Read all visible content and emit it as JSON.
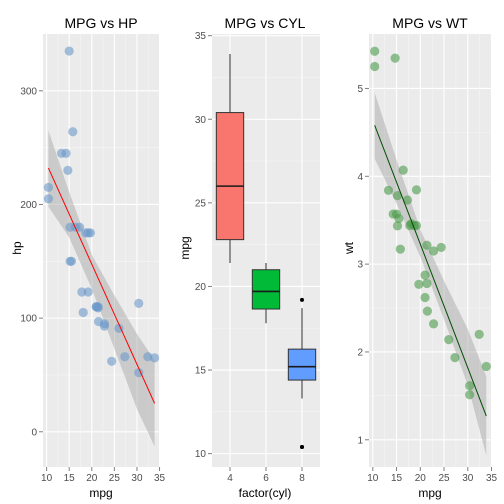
{
  "chart_data": [
    {
      "type": "scatter",
      "title": "MPG vs HP",
      "xlabel": "mpg",
      "ylabel": "hp",
      "xlim": [
        9.2,
        35.1
      ],
      "ylim": [
        -31,
        350
      ],
      "xticks": [
        10,
        15,
        20,
        25,
        30,
        35
      ],
      "yticks": [
        0,
        100,
        200,
        300
      ],
      "point_color": "#6d9ac9",
      "fit_color": "#ff0000",
      "band_color": "#999999",
      "grid": true,
      "points": [
        {
          "x": 21.0,
          "y": 110
        },
        {
          "x": 21.0,
          "y": 110
        },
        {
          "x": 22.8,
          "y": 93
        },
        {
          "x": 21.4,
          "y": 110
        },
        {
          "x": 18.7,
          "y": 175
        },
        {
          "x": 18.1,
          "y": 105
        },
        {
          "x": 14.3,
          "y": 245
        },
        {
          "x": 24.4,
          "y": 62
        },
        {
          "x": 22.8,
          "y": 95
        },
        {
          "x": 19.2,
          "y": 123
        },
        {
          "x": 17.8,
          "y": 123
        },
        {
          "x": 16.4,
          "y": 180
        },
        {
          "x": 17.3,
          "y": 180
        },
        {
          "x": 15.2,
          "y": 180
        },
        {
          "x": 10.4,
          "y": 205
        },
        {
          "x": 10.4,
          "y": 215
        },
        {
          "x": 14.7,
          "y": 230
        },
        {
          "x": 32.4,
          "y": 66
        },
        {
          "x": 30.4,
          "y": 52
        },
        {
          "x": 33.9,
          "y": 65
        },
        {
          "x": 21.5,
          "y": 97
        },
        {
          "x": 15.5,
          "y": 150
        },
        {
          "x": 15.2,
          "y": 150
        },
        {
          "x": 13.3,
          "y": 245
        },
        {
          "x": 19.2,
          "y": 175
        },
        {
          "x": 27.3,
          "y": 66
        },
        {
          "x": 26.0,
          "y": 91
        },
        {
          "x": 30.4,
          "y": 113
        },
        {
          "x": 15.8,
          "y": 264
        },
        {
          "x": 19.7,
          "y": 175
        },
        {
          "x": 15.0,
          "y": 335
        },
        {
          "x": 21.4,
          "y": 109
        }
      ],
      "fit_line": {
        "x": [
          10.4,
          33.9
        ],
        "y": [
          232,
          25
        ]
      },
      "band": [
        {
          "x": 10.4,
          "lo": 198,
          "hi": 265
        },
        {
          "x": 15.0,
          "lo": 171,
          "hi": 211
        },
        {
          "x": 20.1,
          "lo": 125,
          "hi": 155
        },
        {
          "x": 25.0,
          "lo": 73,
          "hi": 120
        },
        {
          "x": 30.0,
          "lo": 20,
          "hi": 86
        },
        {
          "x": 33.9,
          "lo": -13,
          "hi": 63
        }
      ]
    },
    {
      "type": "box",
      "title": "MPG vs CYL",
      "xlabel": "factor(cyl)",
      "ylabel": "mpg",
      "categories": [
        "4",
        "6",
        "8"
      ],
      "ylim": [
        9.2,
        35.1
      ],
      "yticks": [
        10,
        15,
        20,
        25,
        30,
        35
      ],
      "grid": true,
      "boxes": [
        {
          "category": "4",
          "min": 21.4,
          "q1": 22.8,
          "median": 26.0,
          "q3": 30.4,
          "max": 33.9,
          "outliers": [],
          "color": "#f8766d"
        },
        {
          "category": "6",
          "min": 17.8,
          "q1": 18.65,
          "median": 19.7,
          "q3": 21.0,
          "max": 21.4,
          "outliers": [],
          "color": "#00ba38"
        },
        {
          "category": "8",
          "min": 13.3,
          "q1": 14.4,
          "median": 15.2,
          "q3": 16.25,
          "max": 18.7,
          "outliers": [
            10.4,
            10.4,
            19.2
          ],
          "color": "#619cff"
        }
      ]
    },
    {
      "type": "scatter",
      "title": "MPG vs WT",
      "xlabel": "mpg",
      "ylabel": "wt",
      "xlim": [
        9.2,
        35.1
      ],
      "ylim": [
        0.69,
        5.62
      ],
      "xticks": [
        10,
        15,
        20,
        25,
        30,
        35
      ],
      "yticks": [
        1,
        2,
        3,
        4,
        5
      ],
      "point_color": "#4b9a4b",
      "fit_color": "#004d00",
      "band_color": "#999999",
      "grid": true,
      "points": [
        {
          "x": 21.0,
          "y": 2.62
        },
        {
          "x": 21.0,
          "y": 2.875
        },
        {
          "x": 22.8,
          "y": 2.32
        },
        {
          "x": 21.4,
          "y": 3.215
        },
        {
          "x": 18.7,
          "y": 3.44
        },
        {
          "x": 18.1,
          "y": 3.46
        },
        {
          "x": 14.3,
          "y": 3.57
        },
        {
          "x": 24.4,
          "y": 3.19
        },
        {
          "x": 22.8,
          "y": 3.15
        },
        {
          "x": 19.2,
          "y": 3.44
        },
        {
          "x": 17.8,
          "y": 3.44
        },
        {
          "x": 16.4,
          "y": 4.07
        },
        {
          "x": 17.3,
          "y": 3.73
        },
        {
          "x": 15.2,
          "y": 3.78
        },
        {
          "x": 10.4,
          "y": 5.25
        },
        {
          "x": 10.4,
          "y": 5.424
        },
        {
          "x": 14.7,
          "y": 5.345
        },
        {
          "x": 32.4,
          "y": 2.2
        },
        {
          "x": 30.4,
          "y": 1.615
        },
        {
          "x": 33.9,
          "y": 1.835
        },
        {
          "x": 21.5,
          "y": 2.465
        },
        {
          "x": 15.5,
          "y": 3.52
        },
        {
          "x": 15.2,
          "y": 3.435
        },
        {
          "x": 13.3,
          "y": 3.84
        },
        {
          "x": 19.2,
          "y": 3.845
        },
        {
          "x": 27.3,
          "y": 1.935
        },
        {
          "x": 26.0,
          "y": 2.14
        },
        {
          "x": 30.4,
          "y": 1.513
        },
        {
          "x": 15.8,
          "y": 3.17
        },
        {
          "x": 19.7,
          "y": 2.77
        },
        {
          "x": 15.0,
          "y": 3.57
        },
        {
          "x": 21.4,
          "y": 2.78
        }
      ],
      "fit_line": {
        "x": [
          10.4,
          33.9
        ],
        "y": [
          4.58,
          1.27
        ]
      },
      "band": [
        {
          "x": 10.4,
          "lo": 4.2,
          "hi": 4.95
        },
        {
          "x": 15.0,
          "lo": 3.69,
          "hi": 4.19
        },
        {
          "x": 20.1,
          "lo": 3.07,
          "hi": 3.38
        },
        {
          "x": 25.0,
          "lo": 2.37,
          "hi": 2.81
        },
        {
          "x": 30.0,
          "lo": 1.62,
          "hi": 2.26
        },
        {
          "x": 33.9,
          "lo": 0.82,
          "hi": 1.72
        }
      ]
    }
  ]
}
